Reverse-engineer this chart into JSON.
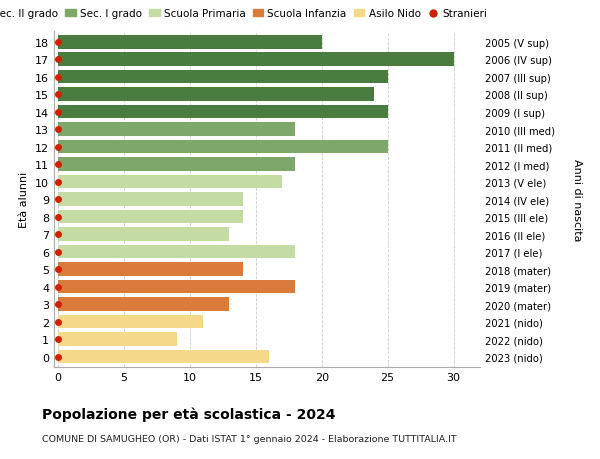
{
  "ages": [
    18,
    17,
    16,
    15,
    14,
    13,
    12,
    11,
    10,
    9,
    8,
    7,
    6,
    5,
    4,
    3,
    2,
    1,
    0
  ],
  "years": [
    "2005 (V sup)",
    "2006 (IV sup)",
    "2007 (III sup)",
    "2008 (II sup)",
    "2009 (I sup)",
    "2010 (III med)",
    "2011 (II med)",
    "2012 (I med)",
    "2013 (V ele)",
    "2014 (IV ele)",
    "2015 (III ele)",
    "2016 (II ele)",
    "2017 (I ele)",
    "2018 (mater)",
    "2019 (mater)",
    "2020 (mater)",
    "2021 (nido)",
    "2022 (nido)",
    "2023 (nido)"
  ],
  "values": [
    20,
    30,
    25,
    24,
    25,
    18,
    25,
    18,
    17,
    14,
    14,
    13,
    18,
    14,
    18,
    13,
    11,
    9,
    16
  ],
  "colors": [
    "#4a7c3f",
    "#4a7c3f",
    "#4a7c3f",
    "#4a7c3f",
    "#4a7c3f",
    "#7ea86a",
    "#7ea86a",
    "#7ea86a",
    "#c5dba4",
    "#c5dba4",
    "#c5dba4",
    "#c5dba4",
    "#c5dba4",
    "#d97b3a",
    "#d97b3a",
    "#d97b3a",
    "#f5d98a",
    "#f5d98a",
    "#f5d98a"
  ],
  "legend_labels": [
    "Sec. II grado",
    "Sec. I grado",
    "Scuola Primaria",
    "Scuola Infanzia",
    "Asilo Nido",
    "Stranieri"
  ],
  "legend_colors": [
    "#4a7c3f",
    "#7ea86a",
    "#c5dba4",
    "#d97b3a",
    "#f5d98a",
    "#cc2200"
  ],
  "title": "Popolazione per età scolastica - 2024",
  "subtitle": "COMUNE DI SAMUGHEO (OR) - Dati ISTAT 1° gennaio 2024 - Elaborazione TUTTITALIA.IT",
  "ylabel_left": "Età alunni",
  "ylabel_right": "Anni di nascita",
  "xlim_max": 32,
  "xticks": [
    0,
    5,
    10,
    15,
    20,
    25,
    30
  ],
  "bar_height": 0.78,
  "grid_color": "#cccccc"
}
